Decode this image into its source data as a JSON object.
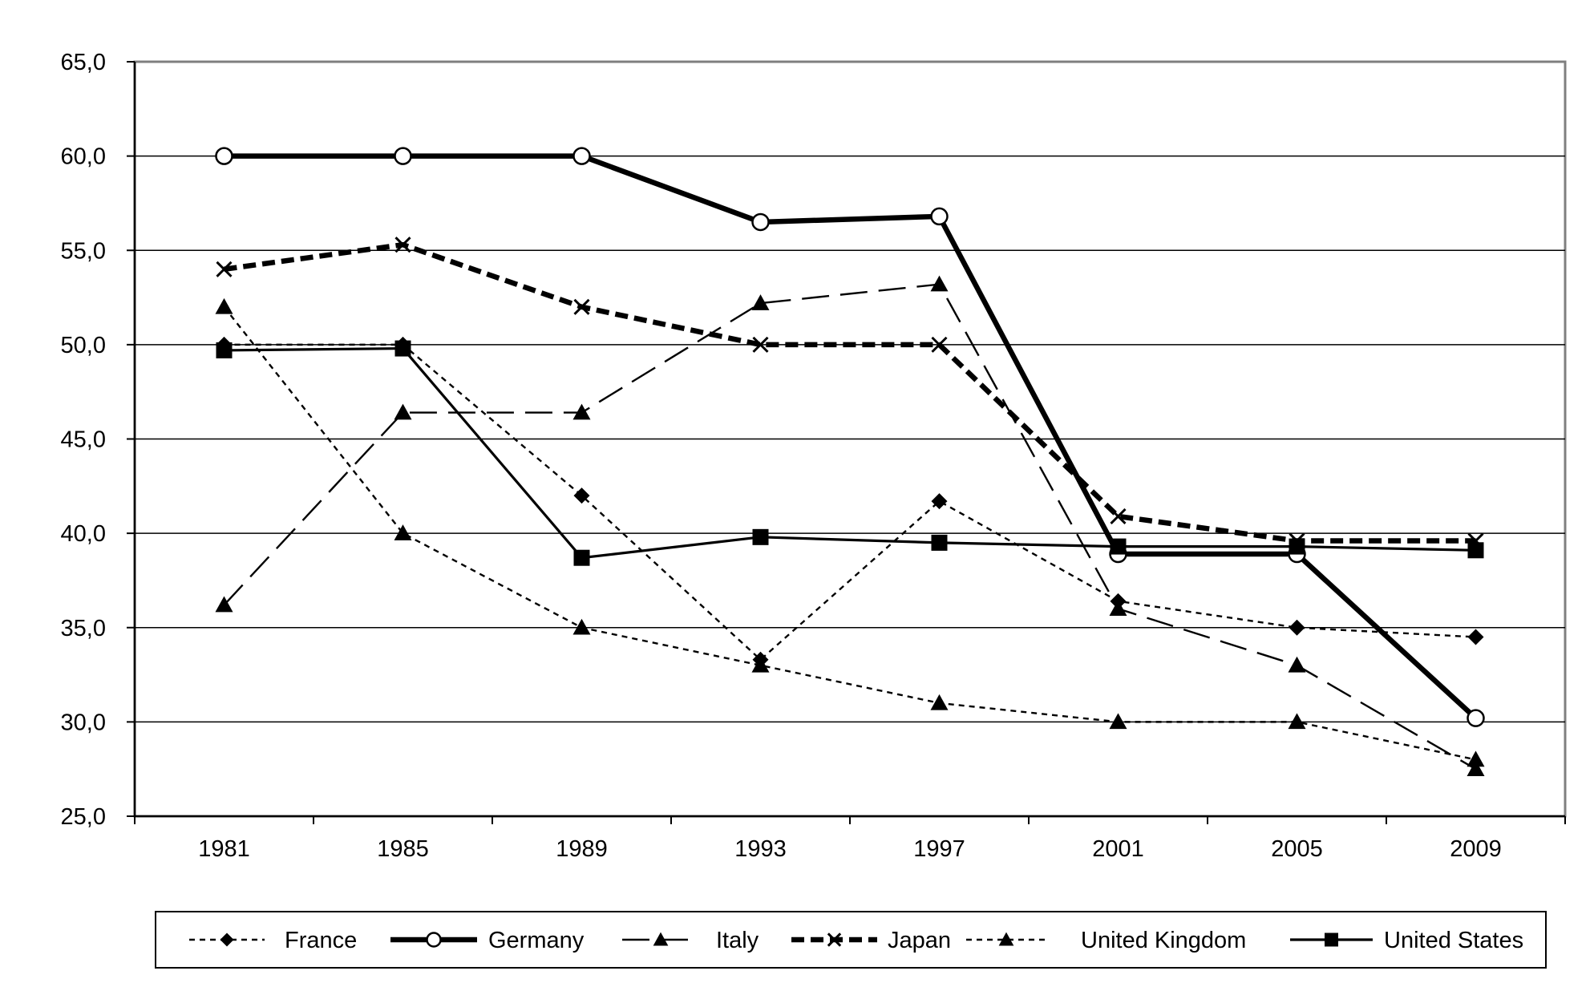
{
  "chart_data": {
    "type": "line",
    "title": "",
    "xlabel": "",
    "ylabel": "",
    "categories": [
      "1981",
      "1985",
      "1989",
      "1993",
      "1997",
      "2001",
      "2005",
      "2009"
    ],
    "ylim": [
      25,
      65
    ],
    "yticks": [
      25,
      30,
      35,
      40,
      45,
      50,
      55,
      60,
      65
    ],
    "ytick_labels": [
      "25,0",
      "30,0",
      "35,0",
      "40,0",
      "45,0",
      "50,0",
      "55,0",
      "60,0",
      "65,0"
    ],
    "grid": "horizontal",
    "legend_position": "bottom",
    "series": [
      {
        "name": "France",
        "values": [
          50.0,
          50.0,
          42.0,
          33.3,
          41.7,
          36.4,
          35.0,
          34.5
        ],
        "marker": "diamond",
        "dash": "short",
        "weight": "thin"
      },
      {
        "name": "Germany",
        "values": [
          60.0,
          60.0,
          60.0,
          56.5,
          56.8,
          38.9,
          38.9,
          30.2
        ],
        "marker": "circle-open",
        "dash": "solid",
        "weight": "thick"
      },
      {
        "name": "Italy",
        "values": [
          36.2,
          46.4,
          46.4,
          52.2,
          53.2,
          36.0,
          33.0,
          27.5
        ],
        "marker": "triangle",
        "dash": "long",
        "weight": "thin"
      },
      {
        "name": "Japan",
        "values": [
          54.0,
          55.3,
          52.0,
          50.0,
          50.0,
          40.9,
          39.6,
          39.6
        ],
        "marker": "x",
        "dash": "medium",
        "weight": "thick"
      },
      {
        "name": "United Kingdom",
        "values": [
          52.0,
          40.0,
          35.0,
          33.0,
          31.0,
          30.0,
          30.0,
          28.0
        ],
        "marker": "triangle",
        "dash": "short",
        "weight": "thin"
      },
      {
        "name": "United States",
        "values": [
          49.7,
          49.8,
          38.7,
          39.8,
          39.5,
          39.3,
          39.3,
          39.1
        ],
        "marker": "square",
        "dash": "solid",
        "weight": "medium"
      }
    ]
  }
}
